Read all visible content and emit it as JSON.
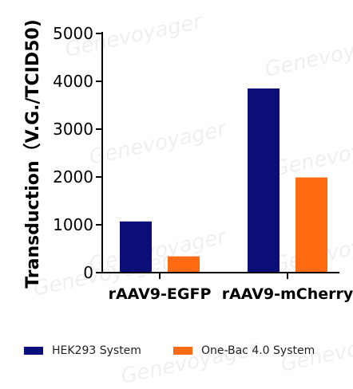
{
  "chart_data": {
    "type": "bar",
    "categories": [
      "rAAV9-EGFP",
      "rAAV9-mCherry"
    ],
    "series": [
      {
        "name": "HEK293 System",
        "values": [
          1070,
          3850
        ],
        "color": "#0d0d7a"
      },
      {
        "name": "One-Bac 4.0 System",
        "values": [
          340,
          1990
        ],
        "color": "#ff6a13"
      }
    ],
    "ylabel": "Transduction（V.G./TCID50)",
    "xlabel": "",
    "ylim": [
      0,
      5000
    ],
    "yticks": [
      0,
      1000,
      2000,
      3000,
      4000,
      5000
    ],
    "grid": false,
    "legend_position": "bottom"
  },
  "watermark_text": "Genevoyager"
}
